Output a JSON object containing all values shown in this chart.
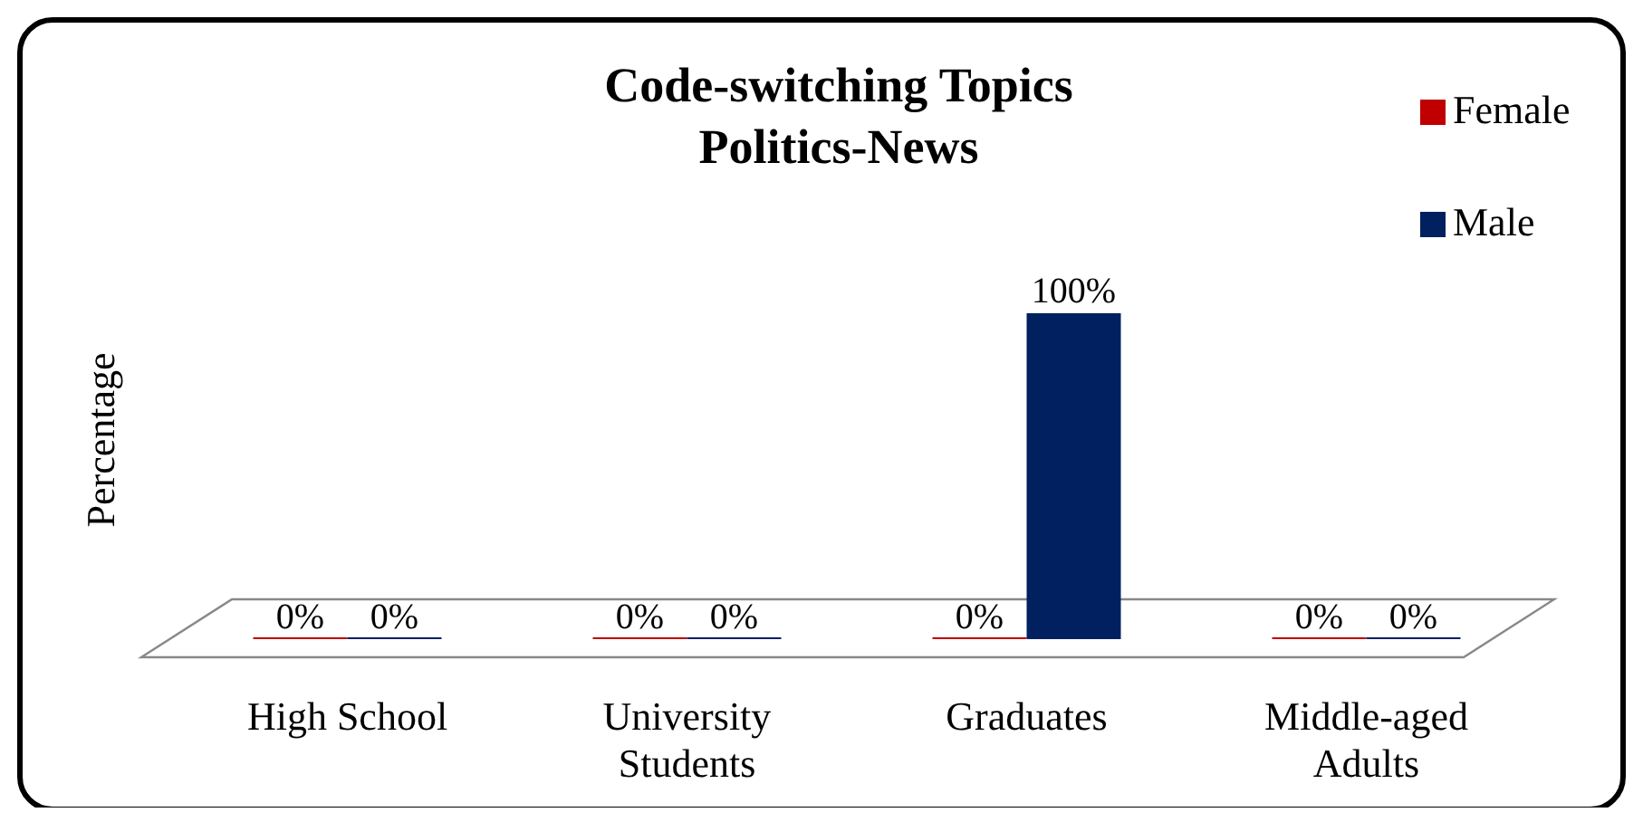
{
  "chart_data": {
    "type": "bar",
    "title": "Code-switching Topics",
    "subtitle": "Politics-News",
    "ylabel": "Percentage",
    "categories": [
      "High School",
      "University Students",
      "Graduates",
      "Middle-aged Adults"
    ],
    "series": [
      {
        "name": "Female",
        "color": "#c00000",
        "values": [
          0,
          0,
          0,
          0
        ],
        "value_labels": [
          "0%",
          "0%",
          "0%",
          "0%"
        ]
      },
      {
        "name": "Male",
        "color": "#002060",
        "values": [
          0,
          0,
          100,
          0
        ],
        "value_labels": [
          "0%",
          "0%",
          "100%",
          "0%"
        ]
      }
    ],
    "legend": "top right",
    "grid": false
  }
}
